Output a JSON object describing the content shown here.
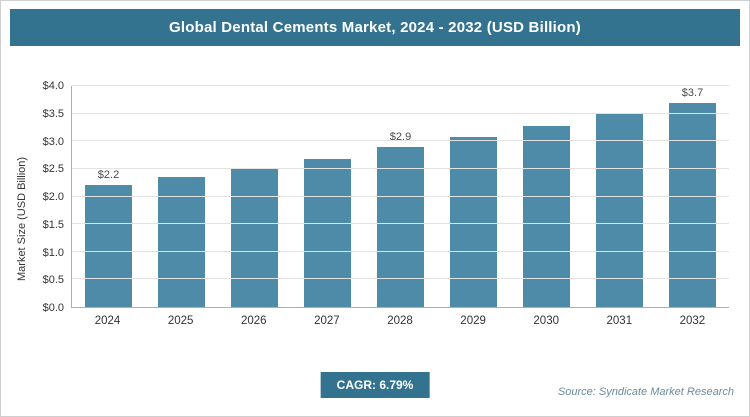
{
  "header": {
    "title_note": "bound from chart_data.title"
  },
  "chart_data": {
    "type": "bar",
    "title": "Global Dental Cements Market, 2024 - 2032 (USD Billion)",
    "categories": [
      "2024",
      "2025",
      "2026",
      "2027",
      "2028",
      "2029",
      "2030",
      "2031",
      "2032"
    ],
    "values": [
      2.2,
      2.35,
      2.5,
      2.68,
      2.9,
      3.07,
      3.28,
      3.5,
      3.7
    ],
    "bar_labels": [
      "$2.2",
      null,
      null,
      null,
      "$2.9",
      null,
      null,
      null,
      "$3.7"
    ],
    "xlabel": "",
    "ylabel": "Market Size (USD Billion)",
    "ylim": [
      0,
      4.0
    ],
    "ytick_step": 0.5,
    "ytick_labels": [
      "$0.0",
      "$0.5",
      "$1.0",
      "$1.5",
      "$2.0",
      "$2.5",
      "$3.0",
      "$3.5",
      "$4.0"
    ],
    "grid": true,
    "legend": "none"
  },
  "footer": {
    "cagr_label": "CAGR: 6.79%",
    "source": "Source: Syndicate Market Research"
  },
  "colors": {
    "header_bg": "#337390",
    "bar": "#4d8ba9",
    "badge_bg": "#337390",
    "gridline": "#e2e2e2",
    "axis": "#aeaeae"
  }
}
